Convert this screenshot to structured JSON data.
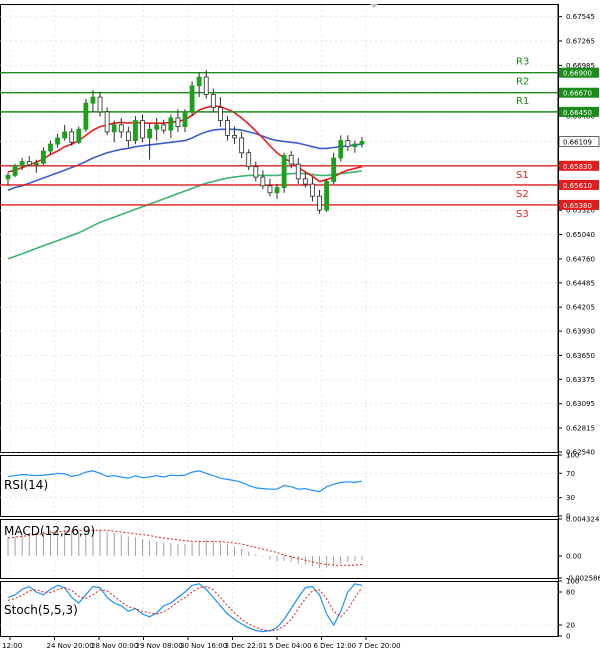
{
  "colors": {
    "background": "#ffffff",
    "grid": "#d9d9d9",
    "axis": "#000000",
    "candle_up": "#1aa01a",
    "candle_down": "#2a2a2a",
    "ma_fast": "#ee1c1c",
    "ma_mid": "#3a5fcd",
    "ma_slow": "#3cb371",
    "resistance": "#1a8c1a",
    "support": "#e01e1e",
    "price_tag": "#000000",
    "rsi_line": "#1e90ff",
    "macd_hist": "#a0a0a0",
    "macd_signal": "#e01e1e",
    "stoch_k": "#1e90ff",
    "stoch_d": "#e01e1e"
  },
  "chart_data": [
    {
      "type": "candlestick",
      "panel": "price",
      "ylim": [
        0.6254,
        0.6769
      ],
      "y_ticks": [
        "0.67545",
        "0.67265",
        "0.66985",
        "0.66690",
        "0.66400",
        "0.66109",
        "0.65830",
        "0.65600",
        "0.65320",
        "0.65040",
        "0.64760",
        "0.64485",
        "0.64205",
        "0.63930",
        "0.63650",
        "0.63375",
        "0.63095",
        "0.62815",
        "0.62540"
      ],
      "x_labels": [
        "12:00",
        "24 Nov 20:00",
        "28 Nov 00:00",
        "29 Nov 08:00",
        "30 Nov 16:00",
        "3 Dec 22:01",
        "5 Dec 04:00",
        "6 Dec 12:00",
        "7 Dec 20:00"
      ],
      "current_price": {
        "value": 0.66109,
        "label": "0.66109"
      },
      "levels": [
        {
          "name": "R3",
          "value": 0.669,
          "label": "0.66900",
          "kind": "resistance"
        },
        {
          "name": "R2",
          "value": 0.6667,
          "label": "0.66670",
          "kind": "resistance"
        },
        {
          "name": "R1",
          "value": 0.6645,
          "label": "0.66450",
          "kind": "resistance"
        },
        {
          "name": "S1",
          "value": 0.6583,
          "label": "0.65830",
          "kind": "support"
        },
        {
          "name": "S2",
          "value": 0.6561,
          "label": "0.65610",
          "kind": "support"
        },
        {
          "name": "S3",
          "value": 0.6538,
          "label": "0.65380",
          "kind": "support"
        }
      ],
      "candles": [
        [
          0.6568,
          0.6575,
          0.656,
          0.6572
        ],
        [
          0.6572,
          0.6585,
          0.657,
          0.6583
        ],
        [
          0.6583,
          0.6592,
          0.6578,
          0.6588
        ],
        [
          0.6588,
          0.6594,
          0.6582,
          0.6584
        ],
        [
          0.6584,
          0.659,
          0.6575,
          0.6586
        ],
        [
          0.6586,
          0.6604,
          0.6584,
          0.66
        ],
        [
          0.66,
          0.6612,
          0.6596,
          0.6608
        ],
        [
          0.6608,
          0.662,
          0.6604,
          0.6615
        ],
        [
          0.6615,
          0.663,
          0.6612,
          0.6622
        ],
        [
          0.6622,
          0.6626,
          0.6606,
          0.661
        ],
        [
          0.661,
          0.6628,
          0.6608,
          0.6625
        ],
        [
          0.6625,
          0.666,
          0.6622,
          0.6655
        ],
        [
          0.6655,
          0.667,
          0.6645,
          0.6662
        ],
        [
          0.6662,
          0.6668,
          0.664,
          0.6645
        ],
        [
          0.6645,
          0.665,
          0.6618,
          0.6622
        ],
        [
          0.6622,
          0.6635,
          0.661,
          0.663
        ],
        [
          0.663,
          0.6638,
          0.6615,
          0.6622
        ],
        [
          0.6622,
          0.6628,
          0.6604,
          0.6612
        ],
        [
          0.6612,
          0.664,
          0.6608,
          0.6635
        ],
        [
          0.6635,
          0.6642,
          0.661,
          0.6615
        ],
        [
          0.6615,
          0.6632,
          0.659,
          0.6625
        ],
        [
          0.6625,
          0.6638,
          0.6612,
          0.663
        ],
        [
          0.663,
          0.6636,
          0.662,
          0.6624
        ],
        [
          0.6624,
          0.6642,
          0.6615,
          0.6638
        ],
        [
          0.6638,
          0.6648,
          0.6622,
          0.6628
        ],
        [
          0.6628,
          0.6648,
          0.6622,
          0.6645
        ],
        [
          0.6645,
          0.668,
          0.664,
          0.6675
        ],
        [
          0.6675,
          0.669,
          0.6662,
          0.6685
        ],
        [
          0.6685,
          0.6693,
          0.666,
          0.6665
        ],
        [
          0.6665,
          0.6672,
          0.6645,
          0.665
        ],
        [
          0.665,
          0.6662,
          0.6628,
          0.6635
        ],
        [
          0.6635,
          0.664,
          0.6612,
          0.6618
        ],
        [
          0.6618,
          0.6628,
          0.6608,
          0.6615
        ],
        [
          0.6615,
          0.6622,
          0.6592,
          0.6598
        ],
        [
          0.6598,
          0.6602,
          0.6578,
          0.6582
        ],
        [
          0.6582,
          0.6588,
          0.6565,
          0.657
        ],
        [
          0.657,
          0.6578,
          0.6556,
          0.656
        ],
        [
          0.656,
          0.6568,
          0.6548,
          0.6552
        ],
        [
          0.6552,
          0.6562,
          0.6545,
          0.6558
        ],
        [
          0.6558,
          0.6598,
          0.6552,
          0.6595
        ],
        [
          0.6595,
          0.66,
          0.658,
          0.6585
        ],
        [
          0.6585,
          0.6592,
          0.6562,
          0.6568
        ],
        [
          0.6568,
          0.6575,
          0.6558,
          0.6562
        ],
        [
          0.6562,
          0.657,
          0.6542,
          0.6548
        ],
        [
          0.6548,
          0.6555,
          0.6528,
          0.6532
        ],
        [
          0.6532,
          0.6568,
          0.653,
          0.6565
        ],
        [
          0.6565,
          0.6598,
          0.6562,
          0.6592
        ],
        [
          0.6592,
          0.6618,
          0.6588,
          0.6612
        ],
        [
          0.6612,
          0.6618,
          0.66,
          0.6605
        ],
        [
          0.6605,
          0.6612,
          0.6598,
          0.6608
        ],
        [
          0.6608,
          0.6616,
          0.6604,
          0.6611
        ]
      ],
      "ma_fast": [
        0.6576,
        0.6578,
        0.6581,
        0.6584,
        0.6587,
        0.6591,
        0.6596,
        0.66,
        0.6605,
        0.6608,
        0.6612,
        0.6618,
        0.6624,
        0.6628,
        0.663,
        0.6632,
        0.6633,
        0.6632,
        0.6633,
        0.6632,
        0.6632,
        0.6632,
        0.6632,
        0.6633,
        0.6634,
        0.6636,
        0.6641,
        0.6647,
        0.665,
        0.6652,
        0.6651,
        0.6648,
        0.6644,
        0.6638,
        0.6631,
        0.6623,
        0.6615,
        0.6606,
        0.6598,
        0.6592,
        0.6587,
        0.6581,
        0.6576,
        0.6571,
        0.6565,
        0.6567,
        0.657,
        0.6575,
        0.6578,
        0.658,
        0.6582
      ],
      "ma_mid": [
        0.6555,
        0.6558,
        0.656,
        0.6563,
        0.6566,
        0.6569,
        0.6572,
        0.6575,
        0.6578,
        0.6581,
        0.6584,
        0.6588,
        0.6592,
        0.6595,
        0.6598,
        0.66,
        0.6602,
        0.6603,
        0.6605,
        0.6606,
        0.6607,
        0.6608,
        0.6609,
        0.661,
        0.6611,
        0.6612,
        0.6615,
        0.6619,
        0.6622,
        0.6624,
        0.6625,
        0.6625,
        0.6625,
        0.6624,
        0.6622,
        0.662,
        0.6617,
        0.6614,
        0.6612,
        0.6611,
        0.661,
        0.6609,
        0.6607,
        0.6605,
        0.6603,
        0.6603,
        0.6604,
        0.6605,
        0.6606,
        0.6607,
        0.6608
      ],
      "ma_slow": [
        0.6476,
        0.6479,
        0.6482,
        0.6485,
        0.6488,
        0.6491,
        0.6494,
        0.6497,
        0.65,
        0.6503,
        0.6506,
        0.651,
        0.6514,
        0.6518,
        0.6521,
        0.6524,
        0.6527,
        0.653,
        0.6533,
        0.6536,
        0.6539,
        0.6542,
        0.6545,
        0.6548,
        0.6551,
        0.6554,
        0.6557,
        0.656,
        0.6563,
        0.6565,
        0.6567,
        0.6569,
        0.657,
        0.6571,
        0.6572,
        0.6572,
        0.6572,
        0.6572,
        0.6572,
        0.6573,
        0.6574,
        0.6574,
        0.6574,
        0.6573,
        0.6572,
        0.6572,
        0.6573,
        0.6574,
        0.6575,
        0.6576,
        0.6577
      ]
    },
    {
      "type": "line",
      "panel": "rsi",
      "title": "RSI(14)",
      "ylim": [
        0,
        100
      ],
      "y_ticks": [
        "100",
        "70",
        "30",
        "0"
      ],
      "values": [
        65,
        66,
        68,
        67,
        66,
        67,
        68,
        70,
        69,
        65,
        67,
        72,
        74,
        70,
        65,
        66,
        64,
        62,
        66,
        63,
        64,
        66,
        64,
        67,
        66,
        67,
        72,
        74,
        70,
        66,
        62,
        60,
        58,
        55,
        50,
        46,
        45,
        44,
        44,
        50,
        48,
        44,
        45,
        42,
        40,
        48,
        52,
        55,
        56,
        55,
        57
      ]
    },
    {
      "type": "bar",
      "panel": "macd",
      "title": "MACD(12,26,9)",
      "ylim": [
        -0.002586,
        0.004324
      ],
      "y_ticks": [
        "0.004324",
        "0.00",
        "-0.002586"
      ],
      "histogram": [
        0.0022,
        0.0023,
        0.0025,
        0.0026,
        0.0027,
        0.0029,
        0.003,
        0.0031,
        0.0031,
        0.003,
        0.0029,
        0.003,
        0.0031,
        0.003,
        0.0028,
        0.0027,
        0.0025,
        0.0023,
        0.0022,
        0.002,
        0.0018,
        0.0017,
        0.0016,
        0.0015,
        0.0014,
        0.0014,
        0.0016,
        0.0018,
        0.0019,
        0.0018,
        0.0016,
        0.0014,
        0.0011,
        0.0008,
        0.0005,
        0.0002,
        -0.0001,
        -0.0004,
        -0.0006,
        -0.0006,
        -0.0007,
        -0.0009,
        -0.001,
        -0.0012,
        -0.0014,
        -0.0013,
        -0.0011,
        -0.0009,
        -0.0007,
        -0.0006,
        -0.0005
      ],
      "signal": [
        0.0021,
        0.0022,
        0.0023,
        0.0024,
        0.0025,
        0.0026,
        0.0027,
        0.0028,
        0.0029,
        0.0029,
        0.003,
        0.003,
        0.003,
        0.003,
        0.003,
        0.0029,
        0.0028,
        0.0027,
        0.0026,
        0.0025,
        0.0024,
        0.0022,
        0.0021,
        0.002,
        0.0019,
        0.0018,
        0.0017,
        0.0017,
        0.0017,
        0.0017,
        0.0017,
        0.0016,
        0.0015,
        0.0014,
        0.0012,
        0.001,
        0.0008,
        0.0006,
        0.0004,
        0.0001,
        -0.0001,
        -0.0003,
        -0.0005,
        -0.0007,
        -0.0009,
        -0.001,
        -0.0011,
        -0.0011,
        -0.0011,
        -0.0011,
        -0.001
      ]
    },
    {
      "type": "line",
      "panel": "stoch",
      "title": "Stoch(5,5,3)",
      "ylim": [
        0,
        100
      ],
      "y_ticks": [
        "100",
        "80",
        "20",
        "0"
      ],
      "k": [
        70,
        75,
        85,
        90,
        80,
        75,
        85,
        92,
        88,
        70,
        60,
        75,
        90,
        88,
        70,
        60,
        55,
        45,
        50,
        40,
        35,
        42,
        55,
        60,
        70,
        80,
        92,
        95,
        85,
        70,
        55,
        40,
        30,
        22,
        15,
        10,
        8,
        10,
        15,
        30,
        50,
        70,
        88,
        90,
        75,
        40,
        20,
        45,
        80,
        95,
        92
      ],
      "d": [
        65,
        68,
        74,
        82,
        84,
        80,
        79,
        84,
        88,
        83,
        72,
        68,
        75,
        84,
        82,
        72,
        62,
        53,
        50,
        45,
        42,
        40,
        44,
        52,
        62,
        70,
        80,
        88,
        90,
        84,
        70,
        55,
        42,
        30,
        22,
        16,
        11,
        9,
        11,
        18,
        30,
        50,
        68,
        82,
        84,
        68,
        45,
        35,
        48,
        70,
        88
      ]
    }
  ]
}
